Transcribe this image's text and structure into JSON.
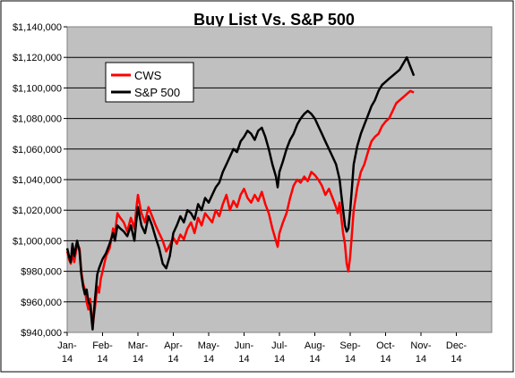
{
  "chart_data": {
    "type": "line",
    "title": "Buy List Vs. S&P 500",
    "xlabel": "",
    "ylabel": "",
    "ylim": [
      940000,
      1140000
    ],
    "yticks": [
      940000,
      960000,
      980000,
      1000000,
      1020000,
      1040000,
      1060000,
      1080000,
      1100000,
      1120000,
      1140000
    ],
    "ytick_labels": [
      "$940,000",
      "$960,000",
      "$980,000",
      "$1,000,000",
      "$1,020,000",
      "$1,040,000",
      "$1,060,000",
      "$1,080,000",
      "$1,100,000",
      "$1,120,000",
      "$1,140,000"
    ],
    "xtick_labels": [
      {
        "line1": "Jan-",
        "line2": "14"
      },
      {
        "line1": "Feb-",
        "line2": "14"
      },
      {
        "line1": "Mar-",
        "line2": "14"
      },
      {
        "line1": "Apr-",
        "line2": "14"
      },
      {
        "line1": "May-",
        "line2": "14"
      },
      {
        "line1": "Jun-",
        "line2": "14"
      },
      {
        "line1": "Jul-",
        "line2": "14"
      },
      {
        "line1": "Aug-",
        "line2": "14"
      },
      {
        "line1": "Sep-",
        "line2": "14"
      },
      {
        "line1": "Oct-",
        "line2": "14"
      },
      {
        "line1": "Nov-",
        "line2": "14"
      },
      {
        "line1": "Dec-",
        "line2": "14"
      }
    ],
    "grid": "horizontal",
    "legend_position": "top-left",
    "plot_background": "#c0c0c0",
    "series": [
      {
        "name": "CWS",
        "color": "#ff0000",
        "points": [
          [
            0,
            993000
          ],
          [
            0.05,
            988000
          ],
          [
            0.1,
            985000
          ],
          [
            0.15,
            992000
          ],
          [
            0.2,
            986000
          ],
          [
            0.28,
            998000
          ],
          [
            0.35,
            995000
          ],
          [
            0.4,
            980000
          ],
          [
            0.45,
            972000
          ],
          [
            0.5,
            968000
          ],
          [
            0.55,
            960000
          ],
          [
            0.6,
            955000
          ],
          [
            0.65,
            962000
          ],
          [
            0.72,
            944000
          ],
          [
            0.78,
            955000
          ],
          [
            0.85,
            970000
          ],
          [
            0.9,
            966000
          ],
          [
            0.95,
            975000
          ],
          [
            1.0,
            980000
          ],
          [
            1.1,
            990000
          ],
          [
            1.2,
            995000
          ],
          [
            1.3,
            1008000
          ],
          [
            1.35,
            1004000
          ],
          [
            1.42,
            1018000
          ],
          [
            1.5,
            1015000
          ],
          [
            1.6,
            1012000
          ],
          [
            1.7,
            1006000
          ],
          [
            1.8,
            1015000
          ],
          [
            1.9,
            1008000
          ],
          [
            1.95,
            1020000
          ],
          [
            2.0,
            1030000
          ],
          [
            2.1,
            1018000
          ],
          [
            2.2,
            1012000
          ],
          [
            2.3,
            1022000
          ],
          [
            2.4,
            1016000
          ],
          [
            2.5,
            1010000
          ],
          [
            2.6,
            1005000
          ],
          [
            2.7,
            1000000
          ],
          [
            2.8,
            993000
          ],
          [
            2.9,
            997000
          ],
          [
            3.0,
            1002000
          ],
          [
            3.1,
            998000
          ],
          [
            3.2,
            1004000
          ],
          [
            3.3,
            1001000
          ],
          [
            3.4,
            1008000
          ],
          [
            3.5,
            1012000
          ],
          [
            3.6,
            1005000
          ],
          [
            3.7,
            1015000
          ],
          [
            3.8,
            1010000
          ],
          [
            3.9,
            1018000
          ],
          [
            4.0,
            1015000
          ],
          [
            4.1,
            1012000
          ],
          [
            4.2,
            1020000
          ],
          [
            4.3,
            1016000
          ],
          [
            4.4,
            1024000
          ],
          [
            4.5,
            1030000
          ],
          [
            4.6,
            1020000
          ],
          [
            4.7,
            1026000
          ],
          [
            4.8,
            1022000
          ],
          [
            4.9,
            1030000
          ],
          [
            5.0,
            1034000
          ],
          [
            5.1,
            1028000
          ],
          [
            5.2,
            1025000
          ],
          [
            5.3,
            1030000
          ],
          [
            5.4,
            1026000
          ],
          [
            5.5,
            1032000
          ],
          [
            5.6,
            1024000
          ],
          [
            5.7,
            1018000
          ],
          [
            5.8,
            1008000
          ],
          [
            5.9,
            1000000
          ],
          [
            5.95,
            996000
          ],
          [
            6.0,
            1005000
          ],
          [
            6.1,
            1012000
          ],
          [
            6.2,
            1018000
          ],
          [
            6.3,
            1028000
          ],
          [
            6.4,
            1036000
          ],
          [
            6.5,
            1040000
          ],
          [
            6.6,
            1038000
          ],
          [
            6.7,
            1042000
          ],
          [
            6.8,
            1039000
          ],
          [
            6.9,
            1045000
          ],
          [
            7.0,
            1043000
          ],
          [
            7.1,
            1040000
          ],
          [
            7.2,
            1036000
          ],
          [
            7.3,
            1030000
          ],
          [
            7.4,
            1034000
          ],
          [
            7.5,
            1028000
          ],
          [
            7.6,
            1022000
          ],
          [
            7.65,
            1018000
          ],
          [
            7.7,
            1025000
          ],
          [
            7.75,
            1015000
          ],
          [
            7.8,
            1005000
          ],
          [
            7.85,
            998000
          ],
          [
            7.9,
            985000
          ],
          [
            7.95,
            980000
          ],
          [
            8.0,
            990000
          ],
          [
            8.05,
            1005000
          ],
          [
            8.1,
            1020000
          ],
          [
            8.2,
            1035000
          ],
          [
            8.3,
            1045000
          ],
          [
            8.4,
            1050000
          ],
          [
            8.5,
            1058000
          ],
          [
            8.6,
            1065000
          ],
          [
            8.7,
            1068000
          ],
          [
            8.8,
            1070000
          ],
          [
            8.9,
            1075000
          ],
          [
            9.0,
            1078000
          ],
          [
            9.1,
            1080000
          ],
          [
            9.2,
            1085000
          ],
          [
            9.3,
            1090000
          ],
          [
            9.4,
            1092000
          ],
          [
            9.5,
            1094000
          ],
          [
            9.6,
            1096000
          ],
          [
            9.7,
            1098000
          ],
          [
            9.8,
            1097000
          ]
        ]
      },
      {
        "name": "S&P 500",
        "color": "#000000",
        "points": [
          [
            0,
            995000
          ],
          [
            0.05,
            990000
          ],
          [
            0.1,
            986000
          ],
          [
            0.15,
            998000
          ],
          [
            0.2,
            990000
          ],
          [
            0.28,
            1000000
          ],
          [
            0.35,
            993000
          ],
          [
            0.4,
            978000
          ],
          [
            0.45,
            970000
          ],
          [
            0.5,
            965000
          ],
          [
            0.55,
            968000
          ],
          [
            0.6,
            960000
          ],
          [
            0.65,
            958000
          ],
          [
            0.72,
            942000
          ],
          [
            0.78,
            960000
          ],
          [
            0.85,
            978000
          ],
          [
            0.9,
            982000
          ],
          [
            0.95,
            985000
          ],
          [
            1.0,
            988000
          ],
          [
            1.1,
            992000
          ],
          [
            1.2,
            998000
          ],
          [
            1.3,
            1005000
          ],
          [
            1.35,
            1000000
          ],
          [
            1.42,
            1010000
          ],
          [
            1.5,
            1008000
          ],
          [
            1.6,
            1006000
          ],
          [
            1.7,
            1003000
          ],
          [
            1.8,
            1010000
          ],
          [
            1.9,
            1000000
          ],
          [
            1.95,
            1012000
          ],
          [
            2.0,
            1022000
          ],
          [
            2.1,
            1010000
          ],
          [
            2.2,
            1005000
          ],
          [
            2.3,
            1016000
          ],
          [
            2.4,
            1010000
          ],
          [
            2.5,
            1002000
          ],
          [
            2.6,
            995000
          ],
          [
            2.7,
            985000
          ],
          [
            2.8,
            982000
          ],
          [
            2.9,
            990000
          ],
          [
            3.0,
            1005000
          ],
          [
            3.1,
            1010000
          ],
          [
            3.2,
            1016000
          ],
          [
            3.3,
            1012000
          ],
          [
            3.4,
            1020000
          ],
          [
            3.5,
            1018000
          ],
          [
            3.6,
            1014000
          ],
          [
            3.7,
            1024000
          ],
          [
            3.8,
            1020000
          ],
          [
            3.9,
            1028000
          ],
          [
            4.0,
            1025000
          ],
          [
            4.1,
            1030000
          ],
          [
            4.2,
            1035000
          ],
          [
            4.3,
            1038000
          ],
          [
            4.4,
            1045000
          ],
          [
            4.5,
            1050000
          ],
          [
            4.6,
            1055000
          ],
          [
            4.7,
            1060000
          ],
          [
            4.8,
            1058000
          ],
          [
            4.9,
            1065000
          ],
          [
            5.0,
            1068000
          ],
          [
            5.1,
            1072000
          ],
          [
            5.2,
            1070000
          ],
          [
            5.3,
            1066000
          ],
          [
            5.4,
            1072000
          ],
          [
            5.5,
            1074000
          ],
          [
            5.6,
            1068000
          ],
          [
            5.7,
            1060000
          ],
          [
            5.8,
            1050000
          ],
          [
            5.9,
            1042000
          ],
          [
            5.95,
            1035000
          ],
          [
            6.0,
            1045000
          ],
          [
            6.1,
            1052000
          ],
          [
            6.2,
            1060000
          ],
          [
            6.3,
            1066000
          ],
          [
            6.4,
            1070000
          ],
          [
            6.5,
            1076000
          ],
          [
            6.6,
            1080000
          ],
          [
            6.7,
            1083000
          ],
          [
            6.8,
            1085000
          ],
          [
            6.9,
            1083000
          ],
          [
            7.0,
            1080000
          ],
          [
            7.1,
            1075000
          ],
          [
            7.2,
            1070000
          ],
          [
            7.3,
            1065000
          ],
          [
            7.4,
            1060000
          ],
          [
            7.5,
            1055000
          ],
          [
            7.6,
            1050000
          ],
          [
            7.65,
            1045000
          ],
          [
            7.7,
            1040000
          ],
          [
            7.75,
            1030000
          ],
          [
            7.8,
            1020000
          ],
          [
            7.85,
            1010000
          ],
          [
            7.9,
            1006000
          ],
          [
            7.95,
            1008000
          ],
          [
            8.0,
            1020000
          ],
          [
            8.05,
            1035000
          ],
          [
            8.1,
            1050000
          ],
          [
            8.2,
            1062000
          ],
          [
            8.3,
            1070000
          ],
          [
            8.4,
            1076000
          ],
          [
            8.5,
            1082000
          ],
          [
            8.6,
            1088000
          ],
          [
            8.7,
            1092000
          ],
          [
            8.8,
            1098000
          ],
          [
            8.9,
            1102000
          ],
          [
            9.0,
            1104000
          ],
          [
            9.1,
            1106000
          ],
          [
            9.2,
            1108000
          ],
          [
            9.3,
            1110000
          ],
          [
            9.4,
            1112000
          ],
          [
            9.5,
            1116000
          ],
          [
            9.6,
            1120000
          ],
          [
            9.7,
            1114000
          ],
          [
            9.8,
            1108000
          ]
        ]
      }
    ]
  }
}
